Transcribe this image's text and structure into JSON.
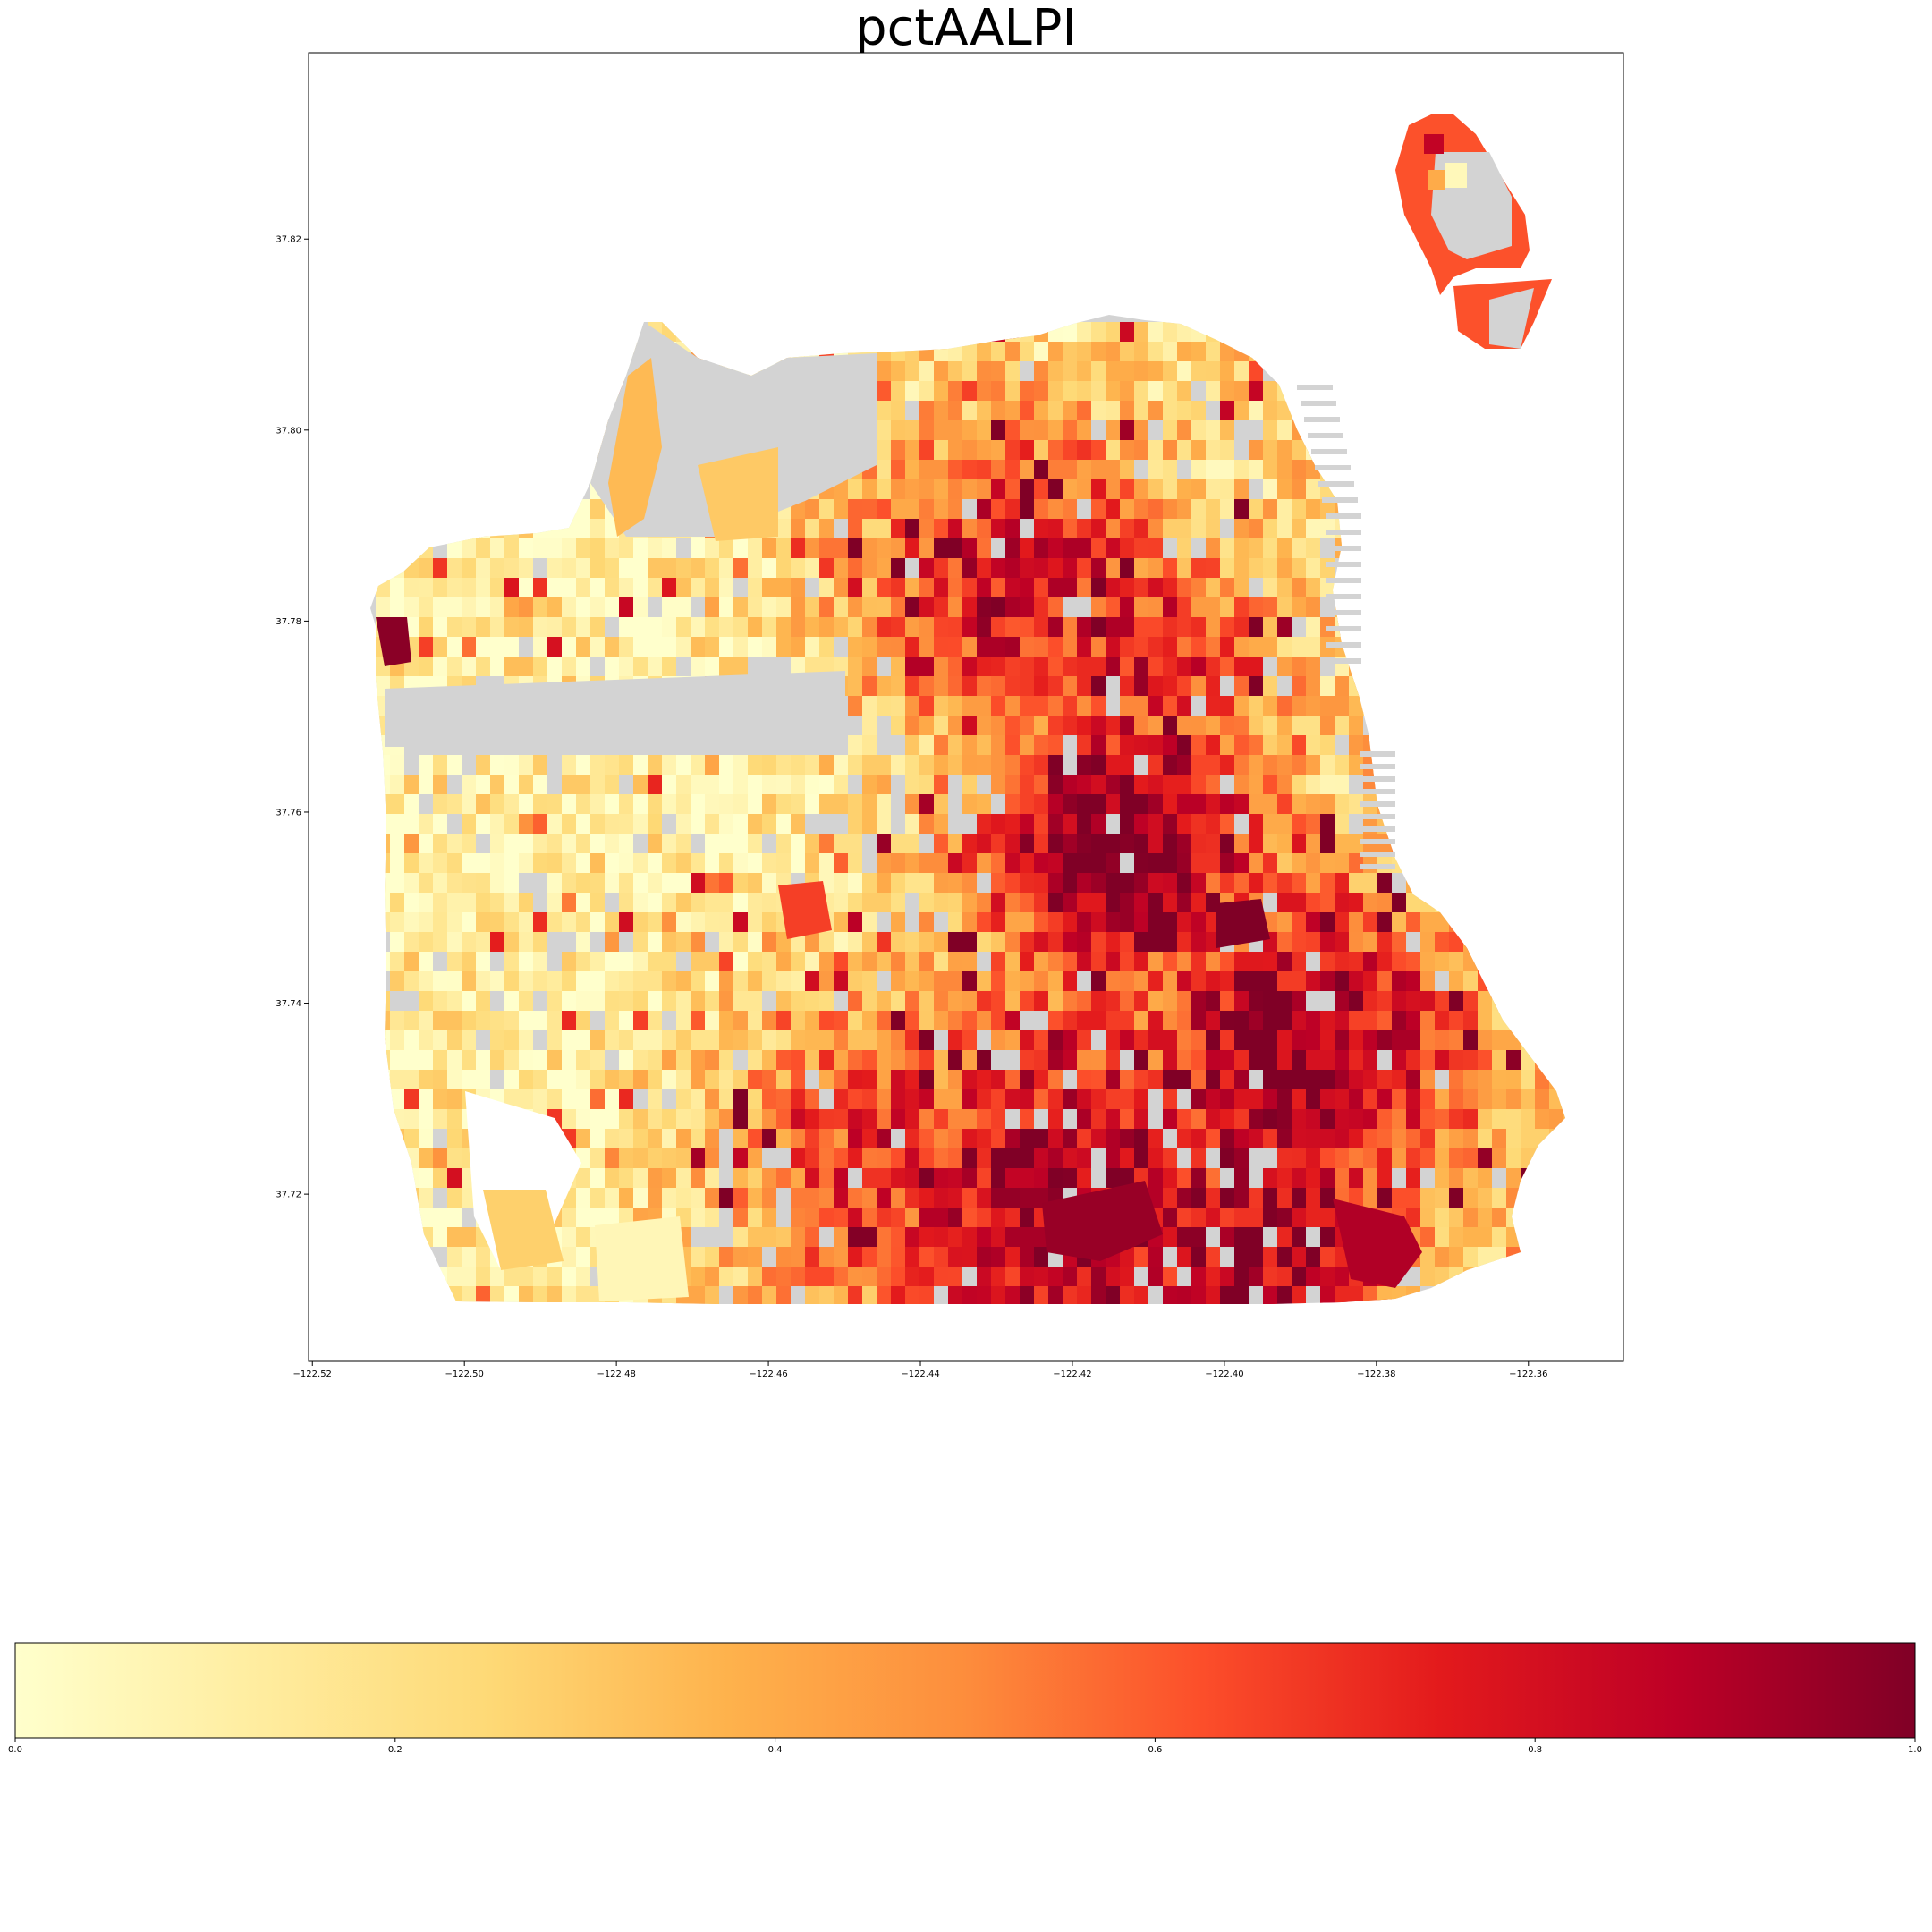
{
  "chart_data": {
    "type": "choropleth_map",
    "title": "pctAALPI",
    "xlabel": "",
    "ylabel": "",
    "x_ticks": [
      "−122.52",
      "−122.50",
      "−122.48",
      "−122.46",
      "−122.44",
      "−122.42",
      "−122.40",
      "−122.38",
      "−122.36"
    ],
    "x_tick_values": [
      -122.52,
      -122.5,
      -122.48,
      -122.46,
      -122.44,
      -122.42,
      -122.4,
      -122.38,
      -122.36
    ],
    "y_ticks": [
      "37.72",
      "37.74",
      "37.76",
      "37.78",
      "37.80",
      "37.82"
    ],
    "y_tick_values": [
      37.72,
      37.74,
      37.76,
      37.78,
      37.8,
      37.82
    ],
    "xlim": [
      -122.5205,
      -122.3475
    ],
    "ylim": [
      37.7025,
      37.8395
    ],
    "grid": false,
    "missing_color": "#d3d3d3",
    "colorbar": {
      "orientation": "horizontal",
      "cmap": "YlOrRd",
      "stops": [
        "#ffffcc",
        "#ffeda0",
        "#fed976",
        "#feb24c",
        "#fd8d3c",
        "#fc4e2a",
        "#e31a1c",
        "#bd0026",
        "#800026"
      ],
      "ticks": [
        "0.0",
        "0.2",
        "0.4",
        "0.6",
        "0.8",
        "1.0"
      ],
      "tick_values": [
        0.0,
        0.2,
        0.4,
        0.6,
        0.8,
        1.0
      ],
      "range": [
        0.0,
        1.0
      ]
    }
  }
}
